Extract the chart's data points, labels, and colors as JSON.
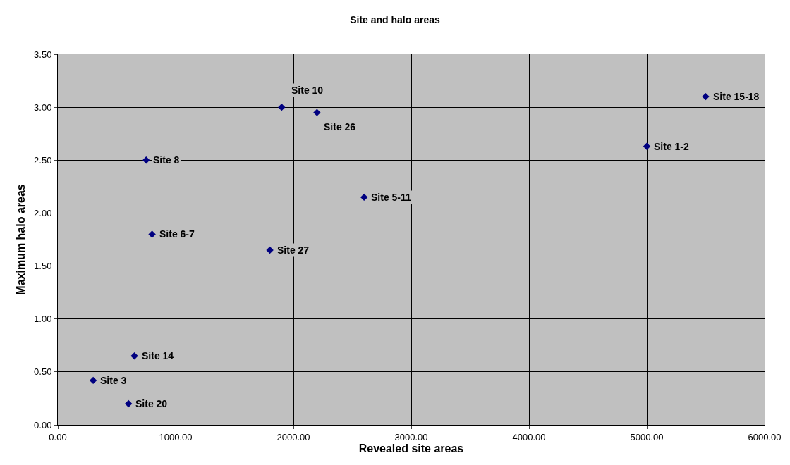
{
  "chart_data": {
    "type": "scatter",
    "title": "Site and halo areas",
    "xlabel": "Revealed site areas",
    "ylabel": "Maximum halo areas",
    "x": [
      1900,
      2200,
      750,
      5500,
      5000,
      2600,
      800,
      1800,
      650,
      300,
      600
    ],
    "series": [
      {
        "color": "#000080",
        "values": [
          3.0,
          2.95,
          2.5,
          3.1,
          2.63,
          2.15,
          1.8,
          1.65,
          0.65,
          0.42,
          0.2
        ]
      }
    ],
    "annotations": [
      {
        "text": "Site 10",
        "x": 1900,
        "y": 3.0
      },
      {
        "text": "Site 26",
        "x": 2200,
        "y": 2.95
      },
      {
        "text": "Site 8",
        "x": 750,
        "y": 2.5
      },
      {
        "text": "Site 15-18",
        "x": 5500,
        "y": 3.1
      },
      {
        "text": "Site 1-2",
        "x": 5000,
        "y": 2.63
      },
      {
        "text": "Site 5-11",
        "x": 2600,
        "y": 2.15
      },
      {
        "text": "Site 6-7",
        "x": 800,
        "y": 1.8
      },
      {
        "text": "Site 27",
        "x": 1800,
        "y": 1.65
      },
      {
        "text": "Site 14",
        "x": 650,
        "y": 0.65
      },
      {
        "text": "Site 3",
        "x": 300,
        "y": 0.42
      },
      {
        "text": "Site 20",
        "x": 600,
        "y": 0.2
      }
    ],
    "xlim": [
      0,
      6000
    ],
    "xticks": [
      {
        "value": 0,
        "label": "0.00"
      },
      {
        "value": 1000,
        "label": "1000.00"
      },
      {
        "value": 2000,
        "label": "2000.00"
      },
      {
        "value": 3000,
        "label": "3000.00"
      },
      {
        "value": 4000,
        "label": "4000.00"
      },
      {
        "value": 5000,
        "label": "5000.00"
      },
      {
        "value": 6000,
        "label": "6000.00"
      }
    ],
    "ylim": [
      0,
      3.5
    ],
    "yticks": [
      {
        "value": 0,
        "label": "0.00"
      },
      {
        "value": 0.5,
        "label": "0.50"
      },
      {
        "value": 1,
        "label": "1.00"
      },
      {
        "value": 1.5,
        "label": "1.50"
      },
      {
        "value": 2,
        "label": "2.00"
      },
      {
        "value": 2.5,
        "label": "2.50"
      },
      {
        "value": 3,
        "label": "3.00"
      },
      {
        "value": 3.5,
        "label": "3.50"
      }
    ],
    "grid": true,
    "marker": "diamond"
  }
}
